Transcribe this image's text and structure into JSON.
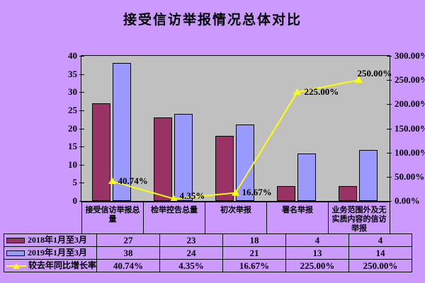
{
  "title": "接受信访举报情况总体对比",
  "colors": {
    "background": "#CC99FF",
    "plot_background": "#C0C0C0",
    "series_2018": "#993366",
    "series_2019": "#9999FF",
    "growth_line": "#FFFF00",
    "axis_and_border": "#000000",
    "text": "#000000"
  },
  "left_axis": {
    "ticks": [
      "40",
      "35",
      "30",
      "25",
      "20",
      "15",
      "10",
      "5",
      "0"
    ]
  },
  "right_axis": {
    "ticks": [
      "300.00%",
      "250.00%",
      "200.00%",
      "150.00%",
      "100.00%",
      "50.00%",
      "0.00%"
    ]
  },
  "chart_data": {
    "type": "bar+line-combo",
    "title": "接受信访举报情况总体对比",
    "categories": [
      "接受信访举报总量",
      "检举控告总量",
      "初次举报",
      "署名举报",
      "业务范围外及无实质内容的信访举报"
    ],
    "series": [
      {
        "name": "2018年1月至3月",
        "type": "bar",
        "color": "#993366",
        "axis": "left",
        "values": [
          27,
          23,
          18,
          4,
          4
        ]
      },
      {
        "name": "2019年1月至3月",
        "type": "bar",
        "color": "#9999FF",
        "axis": "left",
        "values": [
          38,
          24,
          21,
          13,
          14
        ]
      },
      {
        "name": "较去年同比增长率",
        "type": "line",
        "color": "#FFFF00",
        "axis": "right",
        "values_pct": [
          40.74,
          4.35,
          16.67,
          225.0,
          250.0
        ],
        "labels": [
          "40.74%",
          "4.35%",
          "16.67%",
          "225.00%",
          "250.00%"
        ]
      }
    ],
    "left_ylim": [
      0,
      40
    ],
    "right_ylim_pct": [
      0,
      300
    ],
    "grid": false,
    "legend_position": "bottom-data-table"
  },
  "table": {
    "rows": [
      {
        "label": "2018年1月至3月",
        "swatch": "bar-2018",
        "values": [
          "27",
          "23",
          "18",
          "4",
          "4"
        ]
      },
      {
        "label": "2019年1月至3月",
        "swatch": "bar-2019",
        "values": [
          "38",
          "24",
          "21",
          "13",
          "14"
        ]
      },
      {
        "label": "较去年同比增长率",
        "swatch": "line-growth",
        "values": [
          "40.74%",
          "4.35%",
          "16.67%",
          "225.00%",
          "250.00%"
        ]
      }
    ]
  }
}
